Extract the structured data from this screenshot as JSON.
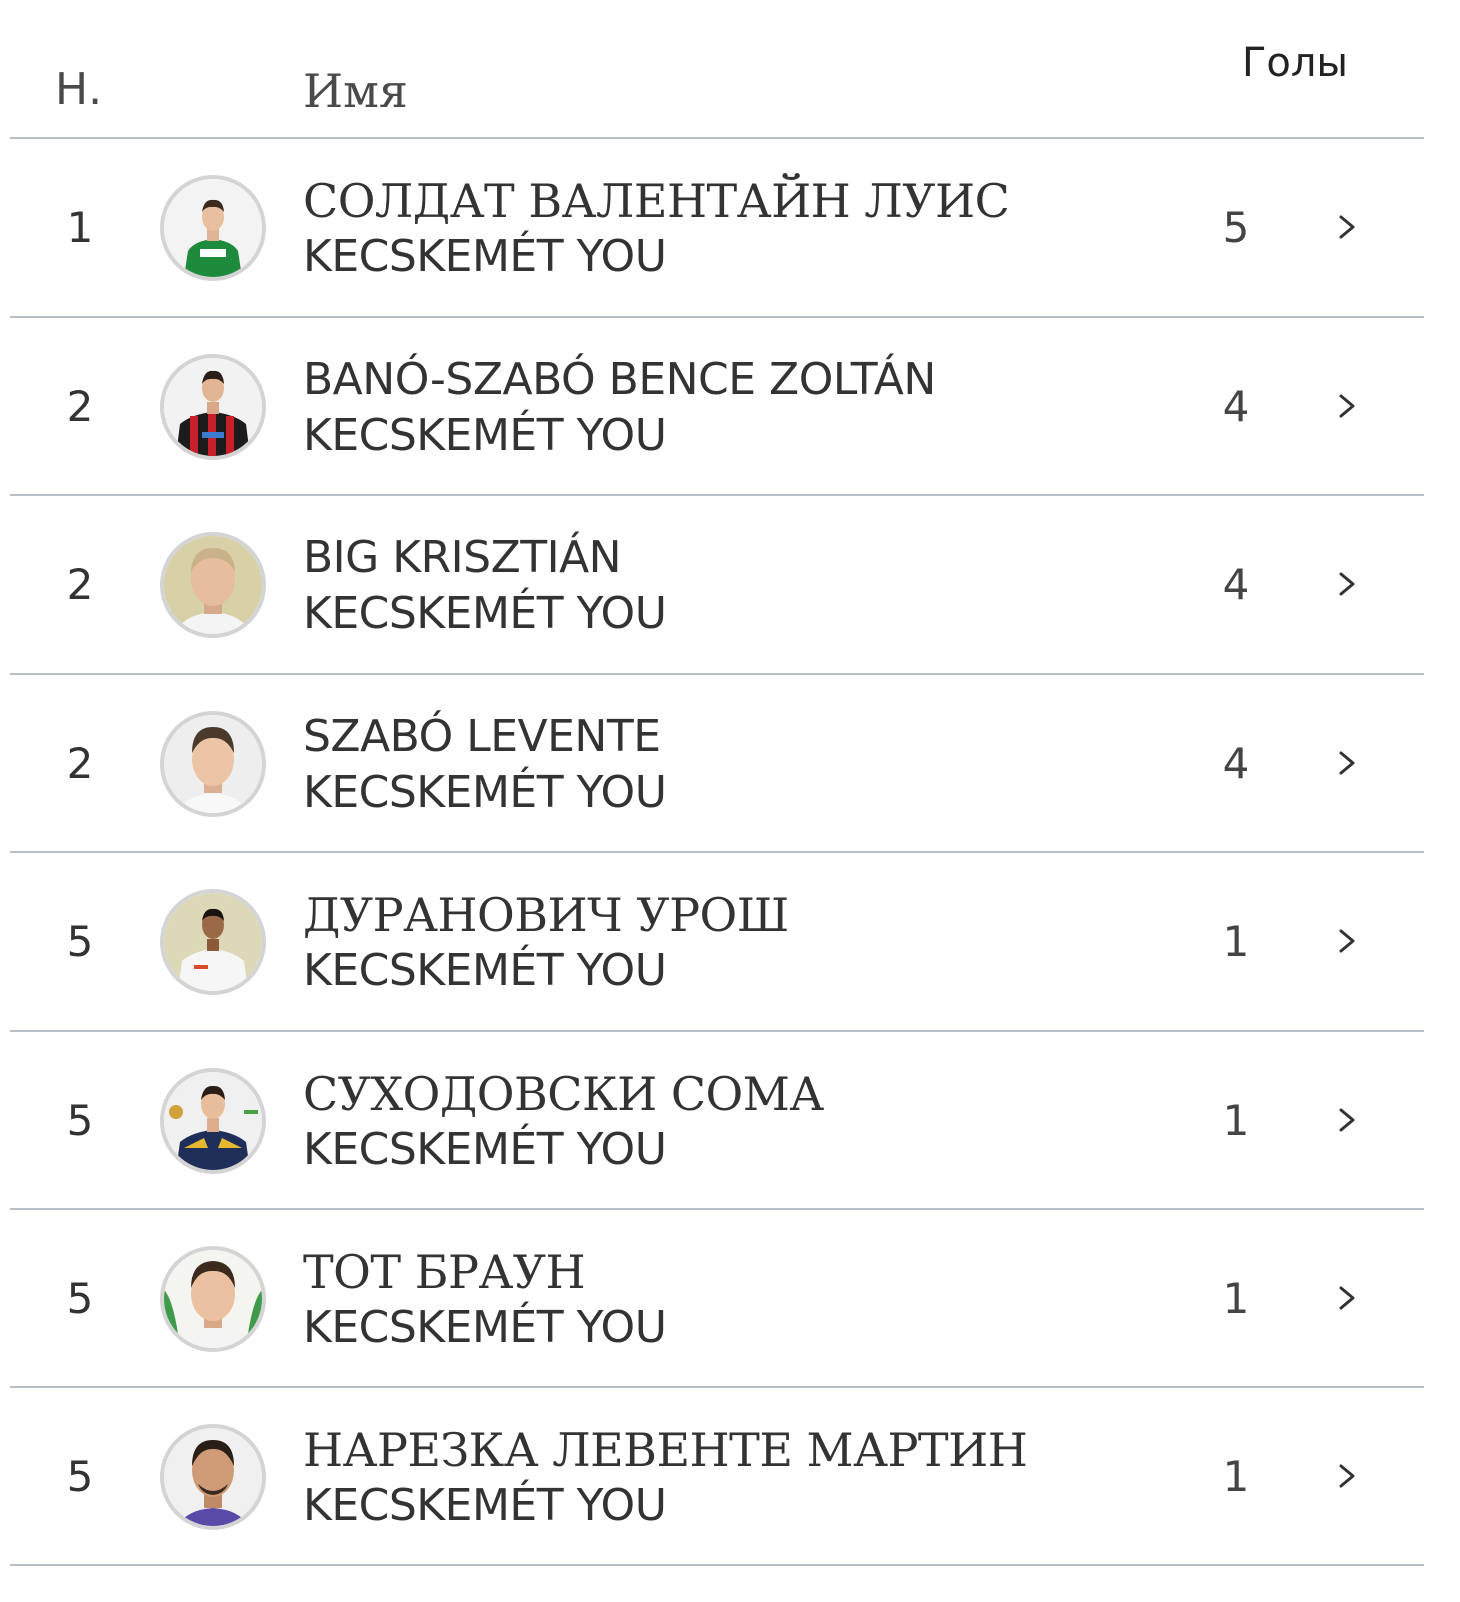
{
  "header": {
    "rank": "Н.",
    "name": "Имя",
    "goals": "Голы"
  },
  "rows": [
    {
      "rank": "1",
      "name": "СОЛДАТ ВАЛЕНТАЙН ЛУИС",
      "team": "KECSKEMÉT YOU",
      "goals": "5"
    },
    {
      "rank": "2",
      "name": "BANÓ-SZABÓ BENCE ZOLTÁN",
      "team": "KECSKEMÉT YOU",
      "goals": "4"
    },
    {
      "rank": "2",
      "name": "BIG KRISZTIÁN",
      "team": "KECSKEMÉT YOU",
      "goals": "4"
    },
    {
      "rank": "2",
      "name": "SZABÓ LEVENTE",
      "team": "KECSKEMÉT YOU",
      "goals": "4"
    },
    {
      "rank": "5",
      "name": "ДУРАНОВИЧ УРОШ",
      "team": "KECSKEMÉT YOU",
      "goals": "1"
    },
    {
      "rank": "5",
      "name": "СУХОДОВСКИ СОМА",
      "team": "KECSKEMÉT YOU",
      "goals": "1"
    },
    {
      "rank": "5",
      "name": "ТОТ БРАУН",
      "team": "KECSKEMÉT YOU",
      "goals": "1"
    },
    {
      "rank": "5",
      "name": "НАРЕЗКА ЛЕВЕНТЕ МАРТИН",
      "team": "KECSKEMÉT YOU",
      "goals": "1"
    }
  ]
}
